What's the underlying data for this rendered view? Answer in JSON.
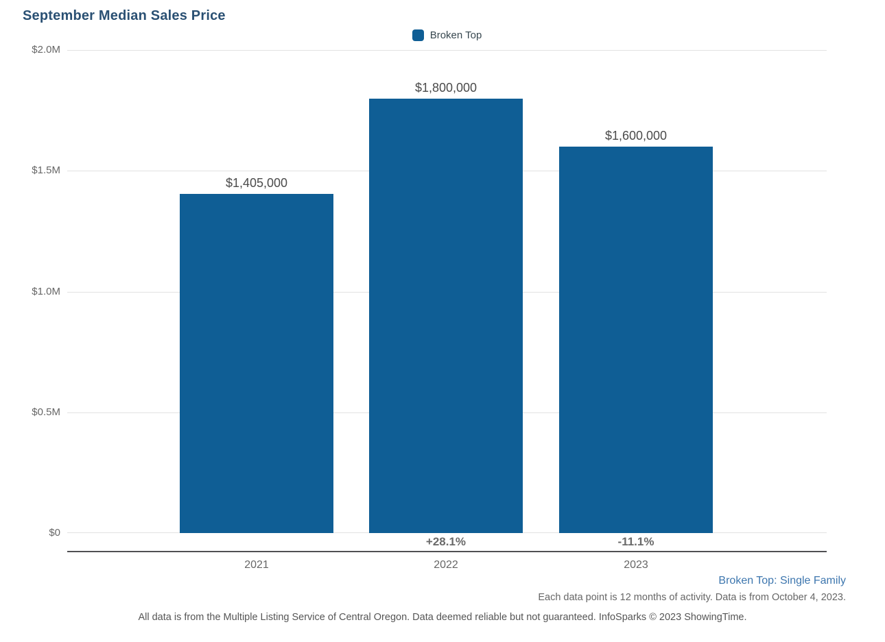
{
  "title": "September Median Sales Price",
  "legend": {
    "label": "Broken Top"
  },
  "colors": {
    "bar": "#0F5E95",
    "title": "#2A5073",
    "link": "#3D76AE",
    "gridline": "#E2E2E2",
    "axis_line": "#4F4F52",
    "text_gray": "#666666"
  },
  "chart_data": {
    "type": "bar",
    "title": "September Median Sales Price",
    "categories": [
      "2021",
      "2022",
      "2023"
    ],
    "series": [
      {
        "name": "Broken Top",
        "values": [
          1405000,
          1800000,
          1600000
        ]
      }
    ],
    "value_labels": [
      "$1,405,000",
      "$1,800,000",
      "$1,600,000"
    ],
    "pct_change_labels": [
      "",
      "+28.1%",
      "-11.1%"
    ],
    "y_ticks": [
      "$2.0M",
      "$1.5M",
      "$1.0M",
      "$0.5M",
      "$0"
    ],
    "ylim": [
      0,
      2000000
    ],
    "xlabel": "",
    "ylabel": "",
    "grid": true,
    "legend_position": "top-center"
  },
  "footer": {
    "series_note": "Broken Top: Single Family",
    "data_note": "Each data point is 12 months of activity. Data is from October 4, 2023.",
    "disclaimer": "All data is from the Multiple Listing Service of Central Oregon. Data deemed reliable but not guaranteed. InfoSparks © 2023 ShowingTime."
  }
}
